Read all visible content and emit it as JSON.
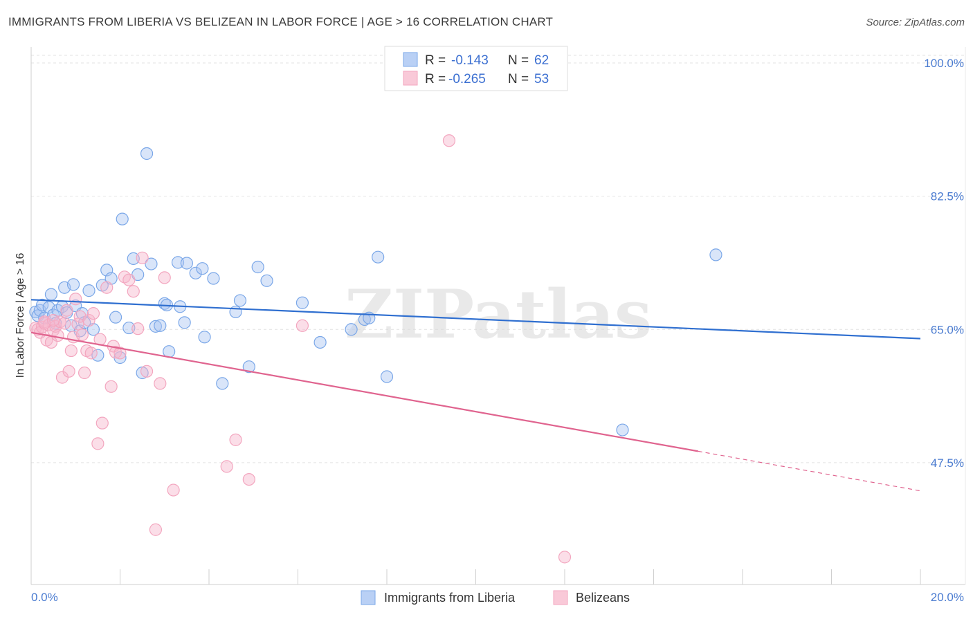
{
  "chart_data": {
    "type": "scatter",
    "title": "IMMIGRANTS FROM LIBERIA VS BELIZEAN IN LABOR FORCE | AGE > 16 CORRELATION CHART",
    "source": "Source: ZipAtlas.com",
    "xlabel": "",
    "ylabel": "In Labor Force | Age > 16",
    "xlim": [
      0,
      20
    ],
    "ylim": [
      31.5,
      101
    ],
    "x_tick_labels": [
      "0.0%",
      "20.0%"
    ],
    "y_ticks": [
      47.5,
      65.0,
      82.5,
      100.0
    ],
    "y_tick_labels": [
      "47.5%",
      "65.0%",
      "82.5%",
      "100.0%"
    ],
    "grid": true,
    "legend_position": "top-center",
    "watermark": "ZIPatlas",
    "series": [
      {
        "name": "Immigrants from Liberia",
        "color": "#7aa7e8",
        "line_color": "#2f6fd0",
        "r_label": "R =",
        "r_value": "-0.143",
        "n_label": "N =",
        "n_value": "62",
        "trend": {
          "x": [
            0,
            20
          ],
          "y": [
            68.9,
            63.8
          ]
        },
        "points": [
          [
            0.1,
            67.3
          ],
          [
            0.15,
            66.8
          ],
          [
            0.2,
            67.5
          ],
          [
            0.25,
            68.2
          ],
          [
            0.3,
            66.5
          ],
          [
            0.4,
            67.9
          ],
          [
            0.45,
            69.6
          ],
          [
            0.5,
            66.9
          ],
          [
            0.55,
            65.8
          ],
          [
            0.6,
            67.5
          ],
          [
            0.7,
            68.0
          ],
          [
            0.75,
            70.5
          ],
          [
            0.8,
            67.2
          ],
          [
            0.9,
            65.5
          ],
          [
            0.95,
            70.9
          ],
          [
            1.0,
            68.1
          ],
          [
            1.1,
            64.8
          ],
          [
            1.15,
            67.1
          ],
          [
            1.2,
            65.9
          ],
          [
            1.3,
            70.1
          ],
          [
            1.4,
            65.0
          ],
          [
            1.5,
            61.6
          ],
          [
            1.6,
            70.8
          ],
          [
            1.7,
            72.8
          ],
          [
            1.8,
            71.7
          ],
          [
            1.9,
            66.6
          ],
          [
            2.0,
            61.3
          ],
          [
            2.05,
            79.5
          ],
          [
            2.2,
            65.2
          ],
          [
            2.3,
            74.3
          ],
          [
            2.4,
            72.2
          ],
          [
            2.5,
            59.3
          ],
          [
            2.6,
            88.1
          ],
          [
            2.7,
            73.6
          ],
          [
            2.8,
            65.4
          ],
          [
            2.9,
            65.5
          ],
          [
            3.0,
            68.4
          ],
          [
            3.05,
            68.2
          ],
          [
            3.1,
            62.1
          ],
          [
            3.3,
            73.8
          ],
          [
            3.35,
            68.0
          ],
          [
            3.45,
            65.9
          ],
          [
            3.5,
            73.7
          ],
          [
            3.7,
            72.4
          ],
          [
            3.85,
            73.0
          ],
          [
            3.9,
            64.0
          ],
          [
            4.1,
            71.7
          ],
          [
            4.3,
            57.9
          ],
          [
            4.6,
            67.3
          ],
          [
            4.7,
            68.8
          ],
          [
            4.9,
            60.1
          ],
          [
            5.1,
            73.2
          ],
          [
            5.3,
            71.4
          ],
          [
            6.1,
            68.5
          ],
          [
            6.5,
            63.3
          ],
          [
            7.2,
            65.0
          ],
          [
            7.5,
            66.3
          ],
          [
            7.6,
            66.5
          ],
          [
            7.8,
            74.5
          ],
          [
            8.0,
            58.8
          ],
          [
            13.3,
            51.8
          ],
          [
            15.4,
            74.8
          ]
        ]
      },
      {
        "name": "Belizeans",
        "color": "#f3a6bf",
        "line_color": "#e0648f",
        "r_label": "R =",
        "r_value": "-0.265",
        "n_label": "N =",
        "n_value": "53",
        "trend": {
          "x": [
            0,
            15
          ],
          "y": [
            64.6,
            49.0
          ]
        },
        "trend_ext": {
          "x": [
            15,
            20
          ],
          "y": [
            49.0,
            43.8
          ]
        },
        "points": [
          [
            0.1,
            65.2
          ],
          [
            0.15,
            65.0
          ],
          [
            0.2,
            64.6
          ],
          [
            0.25,
            65.3
          ],
          [
            0.3,
            66.0
          ],
          [
            0.35,
            63.6
          ],
          [
            0.4,
            65.6
          ],
          [
            0.45,
            63.3
          ],
          [
            0.5,
            64.9
          ],
          [
            0.55,
            65.4
          ],
          [
            0.6,
            64.2
          ],
          [
            0.65,
            66.0
          ],
          [
            0.7,
            58.7
          ],
          [
            0.75,
            65.8
          ],
          [
            0.8,
            67.5
          ],
          [
            0.85,
            59.5
          ],
          [
            0.9,
            62.2
          ],
          [
            0.95,
            64.0
          ],
          [
            1.0,
            69.0
          ],
          [
            1.05,
            65.7
          ],
          [
            1.1,
            66.7
          ],
          [
            1.15,
            64.3
          ],
          [
            1.2,
            59.3
          ],
          [
            1.25,
            62.2
          ],
          [
            1.3,
            66.2
          ],
          [
            1.35,
            61.9
          ],
          [
            1.4,
            67.1
          ],
          [
            1.5,
            50.0
          ],
          [
            1.55,
            63.7
          ],
          [
            1.6,
            52.7
          ],
          [
            1.7,
            70.5
          ],
          [
            1.8,
            57.5
          ],
          [
            1.85,
            62.8
          ],
          [
            1.9,
            62.0
          ],
          [
            2.0,
            61.9
          ],
          [
            2.1,
            71.9
          ],
          [
            2.2,
            71.5
          ],
          [
            2.3,
            70.0
          ],
          [
            2.4,
            65.1
          ],
          [
            2.5,
            74.4
          ],
          [
            2.6,
            59.5
          ],
          [
            2.8,
            38.7
          ],
          [
            2.9,
            57.9
          ],
          [
            3.0,
            71.8
          ],
          [
            3.2,
            43.9
          ],
          [
            4.4,
            47.0
          ],
          [
            4.6,
            50.5
          ],
          [
            4.9,
            45.3
          ],
          [
            6.1,
            65.5
          ],
          [
            9.4,
            89.8
          ],
          [
            12.0,
            35.1
          ],
          [
            0.3,
            65.8
          ],
          [
            0.5,
            66.2
          ]
        ]
      }
    ]
  }
}
